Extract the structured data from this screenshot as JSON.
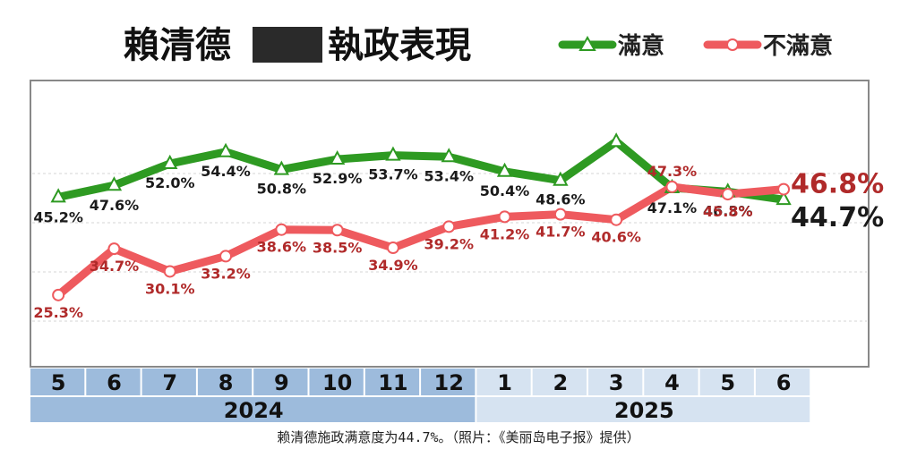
{
  "title_left": "賴清德",
  "title_right": "執政表現",
  "caption": "赖清德施政满意度为44.7%。（照片：《美丽岛电子报》提供）",
  "chart_data": {
    "type": "line",
    "title": "賴清德 執政表現",
    "categories": [
      "5",
      "6",
      "7",
      "8",
      "9",
      "10",
      "11",
      "12",
      "1",
      "2",
      "3",
      "4",
      "5",
      "6"
    ],
    "years": [
      {
        "label": "2024",
        "months": [
          "5",
          "6",
          "7",
          "8",
          "9",
          "10",
          "11",
          "12"
        ]
      },
      {
        "label": "2025",
        "months": [
          "1",
          "2",
          "3",
          "4",
          "5",
          "6"
        ]
      }
    ],
    "series": [
      {
        "name": "滿意",
        "color": "#2e9a22",
        "marker": "triangle",
        "values": [
          45.2,
          47.6,
          52.0,
          54.4,
          50.8,
          52.9,
          53.7,
          53.4,
          50.4,
          48.6,
          56.5,
          47.1,
          46.3,
          44.7
        ],
        "labels": [
          "45.2%",
          "47.6%",
          "52.0%",
          "54.4%",
          "50.8%",
          "52.9%",
          "53.7%",
          "53.4%",
          "50.4%",
          "48.6%",
          "",
          "47.1%",
          "46.3%",
          "44.7%"
        ]
      },
      {
        "name": "不滿意",
        "color": "#ee5a5e",
        "marker": "circle",
        "values": [
          25.3,
          34.7,
          30.1,
          33.2,
          38.6,
          38.5,
          34.9,
          39.2,
          41.2,
          41.7,
          40.6,
          47.3,
          45.8,
          46.8
        ],
        "labels": [
          "25.3%",
          "34.7%",
          "30.1%",
          "33.2%",
          "38.6%",
          "38.5%",
          "34.9%",
          "39.2%",
          "41.2%",
          "41.7%",
          "40.6%",
          "47.3%",
          "45.8%",
          "46.8%"
        ]
      }
    ],
    "grid": true,
    "legend": "top-right",
    "colors": {
      "header_2024": "#9dbbdc",
      "header_2025": "#d6e3f1"
    }
  }
}
